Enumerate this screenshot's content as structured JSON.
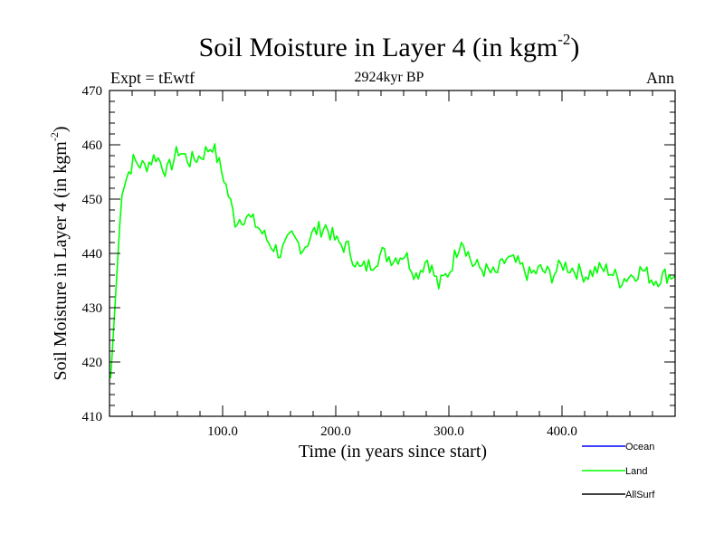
{
  "chart_data": {
    "type": "line",
    "title_main": "Soil Moisture in Layer 4 (in kgm",
    "title_sup": "-2",
    "title_close": ")",
    "subtitle": "2924kyr BP",
    "left_label": "Expt = tEwtf",
    "right_label": "Ann",
    "xlabel": "Time (in years since start)",
    "ylabel_main": "Soil Moisture in Layer 4 (in kgm",
    "ylabel_sup": "-2",
    "ylabel_close": ")",
    "xlim": [
      0,
      500
    ],
    "ylim": [
      410,
      470
    ],
    "x_ticks": [
      100,
      200,
      300,
      400
    ],
    "x_tick_labels": [
      "100.0",
      "200.0",
      "300.0",
      "400.0"
    ],
    "y_ticks": [
      410,
      420,
      430,
      440,
      450,
      460,
      470
    ],
    "y_tick_labels": [
      "410",
      "420",
      "430",
      "440",
      "450",
      "460",
      "470"
    ],
    "legend": [
      {
        "name": "Ocean",
        "color": "#0000ff"
      },
      {
        "name": "Land",
        "color": "#00ff00"
      },
      {
        "name": "AllSurf",
        "color": "#000000"
      }
    ],
    "series": [
      {
        "name": "Land",
        "color": "#00ff00",
        "x_start": 1,
        "x_step": 10,
        "values": [
          417,
          452,
          457,
          456,
          458,
          455,
          459,
          457,
          458,
          460,
          454,
          446,
          447,
          445,
          442,
          440,
          443,
          441,
          444,
          445,
          442,
          441,
          437,
          438,
          440,
          439,
          440,
          436,
          439,
          434,
          437,
          443,
          438,
          437,
          436,
          439,
          438,
          436,
          437,
          436,
          438,
          437,
          436,
          437,
          437,
          435,
          436,
          437,
          435,
          436
        ]
      }
    ]
  }
}
